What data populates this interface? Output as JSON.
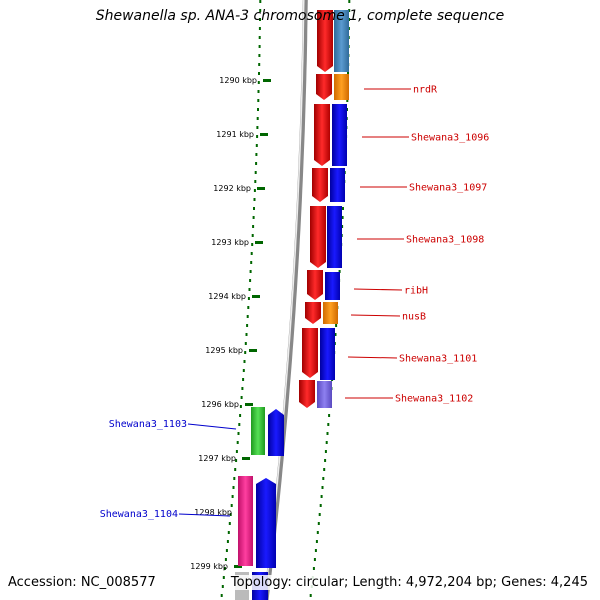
{
  "title": "Shewanella sp. ANA-3 chromosome 1, complete sequence",
  "accession": "Accession: NC_008577",
  "topology": "Topology: circular; Length: 4,972,204 bp; Genes: 4,245",
  "ticks": [
    {
      "label": "1290 kbp"
    },
    {
      "label": "1291 kbp"
    },
    {
      "label": "1292 kbp"
    },
    {
      "label": "1293 kbp"
    },
    {
      "label": "1294 kbp"
    },
    {
      "label": "1295 kbp"
    },
    {
      "label": "1296 kbp"
    },
    {
      "label": "1297 kbp"
    },
    {
      "label": "1298 kbp"
    },
    {
      "label": "1299 kbp"
    }
  ],
  "genes_right": [
    "nrdR",
    "Shewana3_1096",
    "Shewana3_1097",
    "Shewana3_1098",
    "ribH",
    "nusB",
    "Shewana3_1101",
    "Shewana3_1102"
  ],
  "genes_left": [
    "Shewana3_1103",
    "Shewana3_1104"
  ],
  "colors": {
    "forward_strand": "#ff0000",
    "cds_blue": "#0000ff",
    "cds_orange": "#ff8c00",
    "cds_green": "#33cc33",
    "cds_pink": "#ff1493",
    "cds_purple": "#7b68ee",
    "right_label": "#cc0000",
    "left_label": "#0000cc",
    "tick_green": "#006600"
  }
}
